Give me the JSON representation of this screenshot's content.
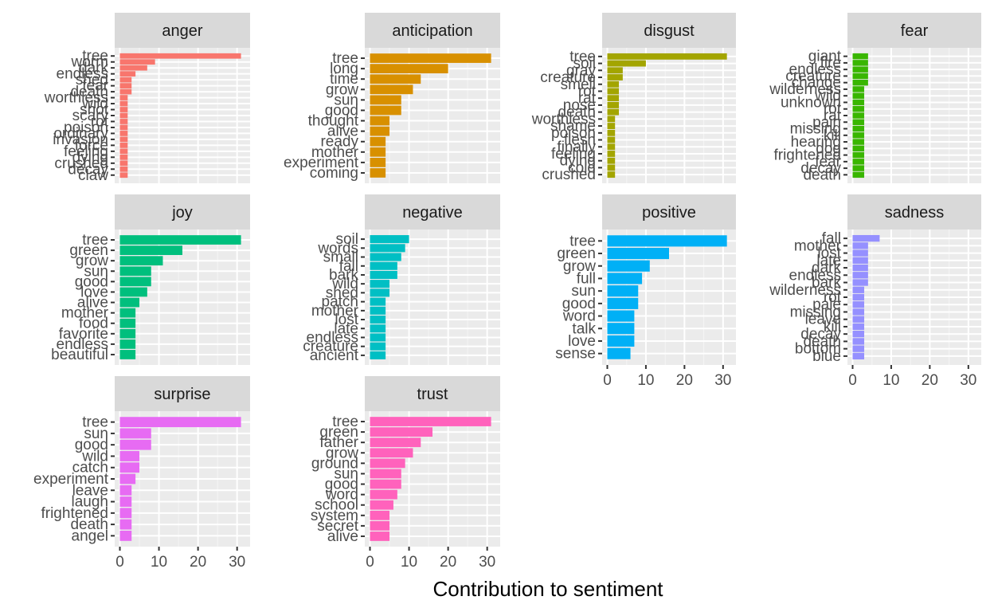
{
  "chart_data": {
    "type": "bar",
    "orientation": "horizontal",
    "layout": "faceted 4 columns, 3 rows",
    "xlabel": "Contribution to sentiment",
    "ylabel": "",
    "xlim": [
      0,
      32
    ],
    "x_ticks": [
      "0",
      "10",
      "20",
      "30"
    ],
    "grid": true,
    "panels": [
      {
        "name": "anger",
        "color": "#F8766D",
        "categories": [
          "tree",
          "worm",
          "dark",
          "endless",
          "shed",
          "fear",
          "death",
          "worthless",
          "wild",
          "shot",
          "scary",
          "rot",
          "poison",
          "ordinary",
          "invasion",
          "force",
          "feeling",
          "dying",
          "crushed",
          "decay",
          "claw"
        ],
        "values": [
          31,
          9,
          7,
          4,
          3,
          3,
          3,
          2,
          2,
          2,
          2,
          2,
          2,
          2,
          2,
          2,
          2,
          2,
          2,
          2,
          2
        ]
      },
      {
        "name": "anticipation",
        "color": "#D89000",
        "categories": [
          "tree",
          "long",
          "time",
          "grow",
          "sun",
          "good",
          "thought",
          "alive",
          "ready",
          "mother",
          "experiment",
          "coming"
        ],
        "values": [
          31,
          20,
          13,
          11,
          8,
          8,
          5,
          5,
          4,
          4,
          4,
          4
        ]
      },
      {
        "name": "disgust",
        "color": "#A3A500",
        "categories": [
          "tree",
          "soil",
          "gray",
          "creature",
          "smell",
          "rot",
          "rat",
          "nose",
          "death",
          "worthless",
          "shame",
          "poison",
          "flesh",
          "finally",
          "feeling",
          "dying",
          "cold",
          "crushed"
        ],
        "values": [
          31,
          10,
          4,
          4,
          3,
          3,
          3,
          3,
          3,
          2,
          2,
          2,
          2,
          2,
          2,
          2,
          2,
          2
        ]
      },
      {
        "name": "fear",
        "color": "#39B600",
        "categories": [
          "giant",
          "fire",
          "endless",
          "creature",
          "change",
          "wilderness",
          "wild",
          "unknown",
          "rot",
          "rat",
          "pain",
          "missing",
          "kill",
          "hearing",
          "dog",
          "frightened",
          "fear",
          "decay",
          "death"
        ],
        "values": [
          4,
          4,
          4,
          4,
          4,
          3,
          3,
          3,
          3,
          3,
          3,
          3,
          3,
          3,
          3,
          3,
          3,
          3,
          3
        ]
      },
      {
        "name": "joy",
        "color": "#00BF7D",
        "categories": [
          "tree",
          "green",
          "grow",
          "sun",
          "good",
          "love",
          "alive",
          "mother",
          "food",
          "favorite",
          "endless",
          "beautiful"
        ],
        "values": [
          31,
          16,
          11,
          8,
          8,
          7,
          5,
          4,
          4,
          4,
          4,
          4
        ]
      },
      {
        "name": "negative",
        "color": "#00BFC4",
        "categories": [
          "soil",
          "words",
          "small",
          "fall",
          "bark",
          "wild",
          "shed",
          "patch",
          "mother",
          "lost",
          "late",
          "endless",
          "creature",
          "ancient"
        ],
        "values": [
          10,
          9,
          8,
          7,
          7,
          5,
          5,
          4,
          4,
          4,
          4,
          4,
          4,
          4
        ]
      },
      {
        "name": "positive",
        "color": "#00B0F6",
        "categories": [
          "tree",
          "green",
          "grow",
          "full",
          "sun",
          "good",
          "word",
          "talk",
          "love",
          "sense"
        ],
        "values": [
          31,
          16,
          11,
          9,
          8,
          8,
          7,
          7,
          7,
          6
        ]
      },
      {
        "name": "sadness",
        "color": "#9590FF",
        "categories": [
          "fall",
          "mother",
          "lost",
          "late",
          "dark",
          "endless",
          "bark",
          "wilderness",
          "rot",
          "pale",
          "missing",
          "leave",
          "kill",
          "decay",
          "death",
          "bottom",
          "blue"
        ],
        "values": [
          7,
          4,
          4,
          4,
          4,
          4,
          4,
          3,
          3,
          3,
          3,
          3,
          3,
          3,
          3,
          3,
          3
        ]
      },
      {
        "name": "surprise",
        "color": "#E76BF3",
        "categories": [
          "tree",
          "sun",
          "good",
          "wild",
          "catch",
          "experiment",
          "leave",
          "laugh",
          "frightened",
          "death",
          "angel"
        ],
        "values": [
          31,
          8,
          8,
          5,
          5,
          4,
          3,
          3,
          3,
          3,
          3
        ]
      },
      {
        "name": "trust",
        "color": "#FF62BC",
        "categories": [
          "tree",
          "green",
          "father",
          "grow",
          "ground",
          "sun",
          "good",
          "word",
          "school",
          "system",
          "secret",
          "alive"
        ],
        "values": [
          31,
          16,
          13,
          11,
          9,
          8,
          8,
          7,
          6,
          5,
          5,
          5
        ]
      }
    ]
  }
}
